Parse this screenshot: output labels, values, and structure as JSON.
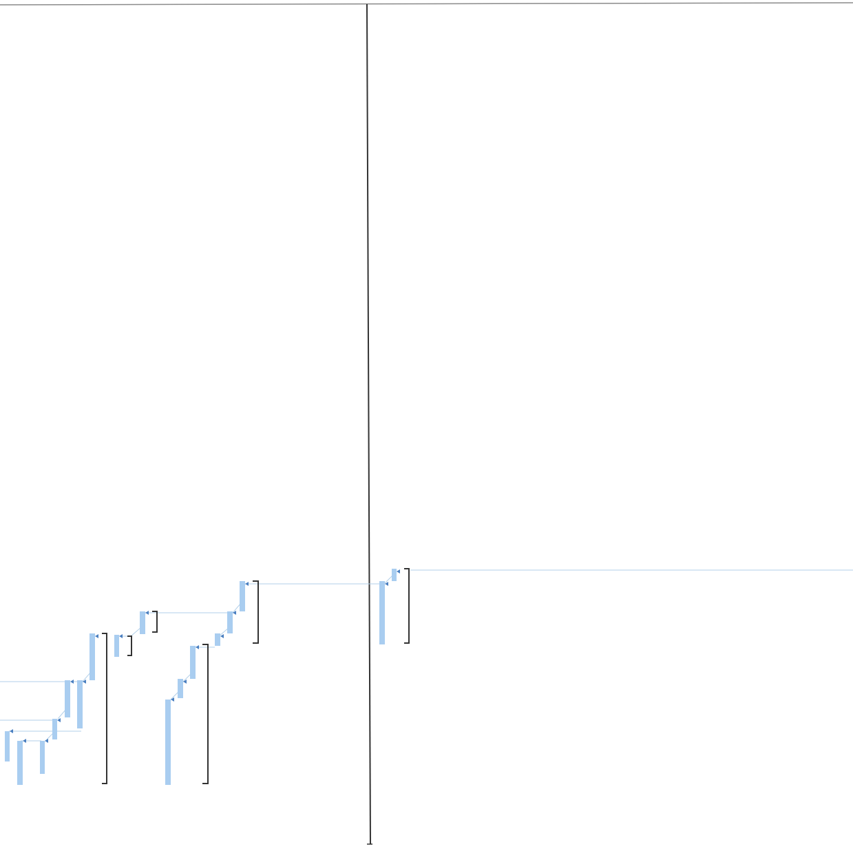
{
  "colors": {
    "background": "#ffffff",
    "task_bar": "#a9cdf0",
    "link_line": "#b2cfe8",
    "arrow": "#4a7fc0",
    "bracket": "#333333",
    "divider": "#333333",
    "top_border": "#8a8a8a"
  },
  "diagram": {
    "type": "gantt-network-fragment",
    "has_text": false,
    "task_bar_count": 18,
    "summary_bracket_count": 6,
    "divider_count": 1
  }
}
